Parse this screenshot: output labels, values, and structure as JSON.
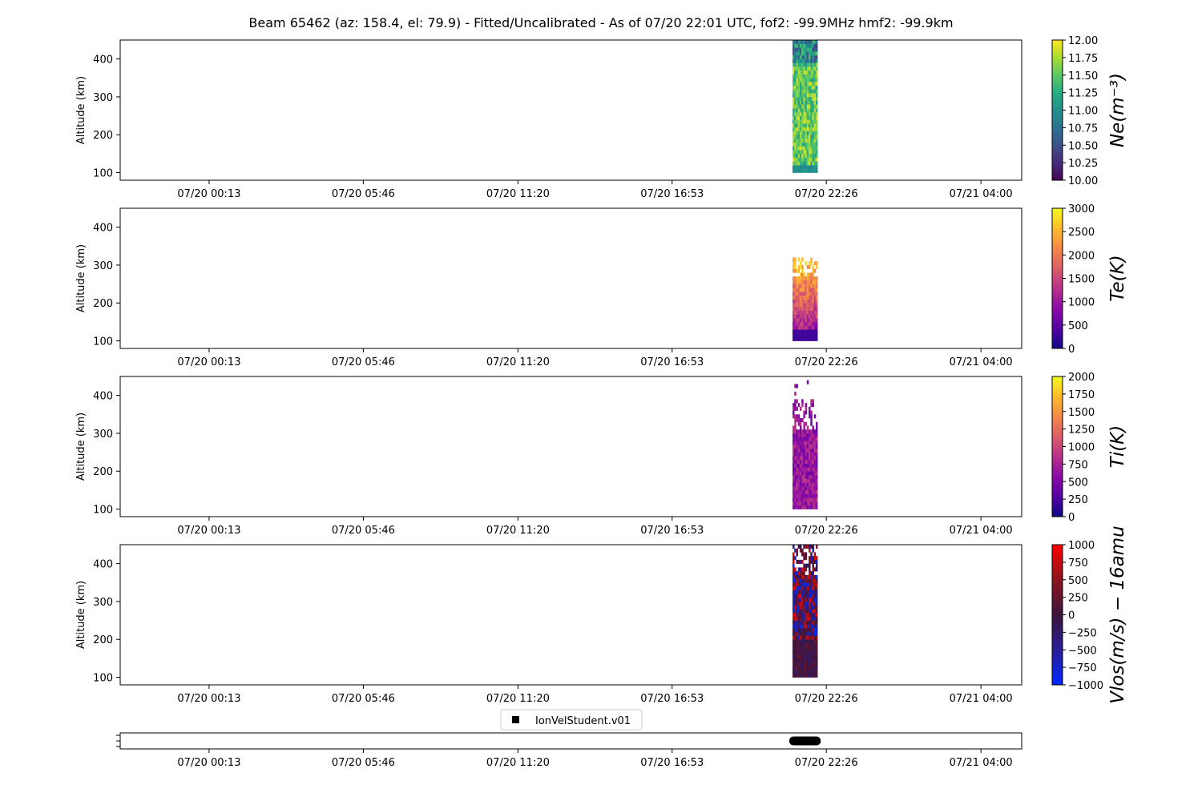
{
  "title": "Beam 65462 (az: 158.4, el: 79.9) - Fitted/Uncalibrated - As of 07/20 22:01 UTC, fof2: -99.9MHz  hmf2: -99.9km",
  "chart_data": [
    {
      "type": "heatmap",
      "ylabel": "Altitude (km)",
      "x_tick_labels": [
        "07/20 00:13",
        "07/20 05:46",
        "07/20 11:20",
        "07/20 16:53",
        "07/20 22:26",
        "07/21 04:00"
      ],
      "x_range_hours": [
        -3.2,
        29.25
      ],
      "x_tick_hours": [
        0,
        5.55,
        11.117,
        16.667,
        22.217,
        27.783
      ],
      "y_ticks": [
        100,
        200,
        300,
        400
      ],
      "ylim": [
        80,
        450
      ],
      "data_x_hours": [
        21.0,
        21.9
      ],
      "data_y_range": [
        100,
        450
      ],
      "colorbar": {
        "label": "Ne(m⁻³)",
        "ticks": [
          "12.00",
          "11.75",
          "11.50",
          "11.25",
          "11.00",
          "10.75",
          "10.50",
          "10.25",
          "10.00"
        ],
        "range": [
          10,
          12
        ],
        "colormap": "viridis"
      }
    },
    {
      "type": "heatmap",
      "ylabel": "Altitude (km)",
      "x_tick_labels": [
        "07/20 00:13",
        "07/20 05:46",
        "07/20 11:20",
        "07/20 16:53",
        "07/20 22:26",
        "07/21 04:00"
      ],
      "y_ticks": [
        100,
        200,
        300,
        400
      ],
      "ylim": [
        80,
        450
      ],
      "data_x_hours": [
        21.0,
        21.9
      ],
      "data_y_range": [
        100,
        315
      ],
      "colorbar": {
        "label": "Te(K)",
        "ticks": [
          "3000",
          "2500",
          "2000",
          "1500",
          "1000",
          "500",
          "0"
        ],
        "range": [
          0,
          3000
        ],
        "colormap": "plasma"
      }
    },
    {
      "type": "heatmap",
      "ylabel": "Altitude (km)",
      "x_tick_labels": [
        "07/20 00:13",
        "07/20 05:46",
        "07/20 11:20",
        "07/20 16:53",
        "07/20 22:26",
        "07/21 04:00"
      ],
      "y_ticks": [
        100,
        200,
        300,
        400
      ],
      "ylim": [
        80,
        450
      ],
      "data_x_hours": [
        21.0,
        21.9
      ],
      "data_y_range": [
        100,
        440
      ],
      "colorbar": {
        "label": "Ti(K)",
        "ticks": [
          "2000",
          "1750",
          "1500",
          "1250",
          "1000",
          "750",
          "500",
          "250",
          "0"
        ],
        "range": [
          0,
          2000
        ],
        "colormap": "plasma"
      }
    },
    {
      "type": "heatmap",
      "ylabel": "Altitude (km)",
      "x_tick_labels": [
        "07/20 00:13",
        "07/20 05:46",
        "07/20 11:20",
        "07/20 16:53",
        "07/20 22:26",
        "07/21 04:00"
      ],
      "y_ticks": [
        100,
        200,
        300,
        400
      ],
      "ylim": [
        80,
        450
      ],
      "data_x_hours": [
        21.0,
        21.9
      ],
      "data_y_range": [
        100,
        450
      ],
      "colorbar": {
        "label": "Vlos(m/s) − 16amu",
        "ticks": [
          "1000",
          "750",
          "500",
          "250",
          "0",
          "−250",
          "−500",
          "−750",
          "−1000"
        ],
        "range": [
          -1000,
          1000
        ],
        "colormap": "blue-black-red"
      }
    },
    {
      "type": "scatter",
      "x_tick_labels": [
        "07/20 00:13",
        "07/20 05:46",
        "07/20 11:20",
        "07/20 16:53",
        "07/20 22:26",
        "07/21 04:00"
      ],
      "legend": "IonVelStudent.v01",
      "legend_position": "top-center",
      "data_x_hours": [
        21.0,
        21.9
      ],
      "marker": "square",
      "color": "#000000"
    }
  ]
}
